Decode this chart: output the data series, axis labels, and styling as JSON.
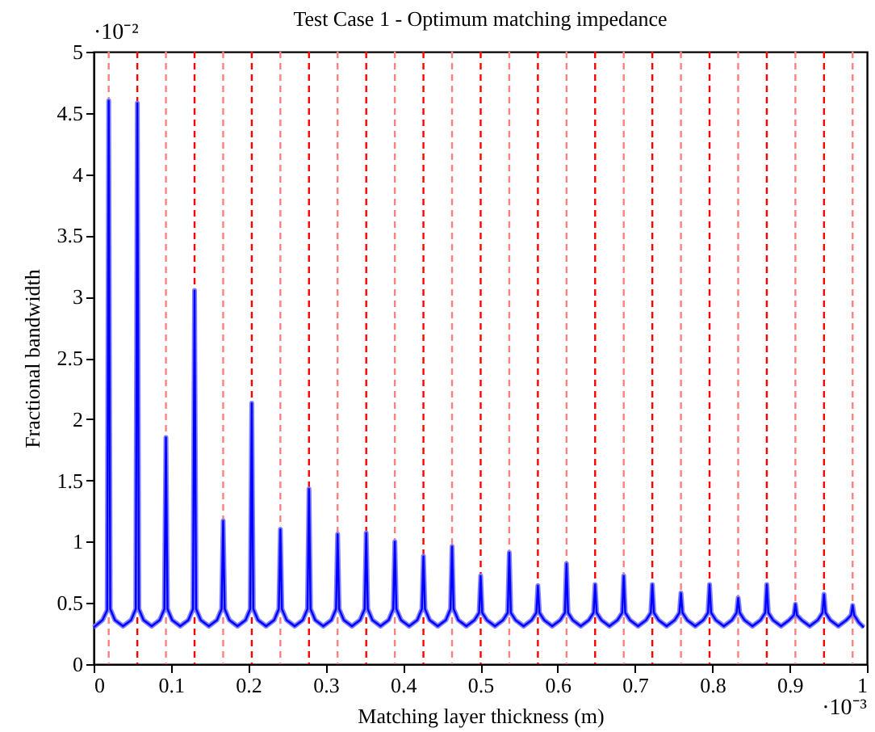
{
  "chart_data": {
    "type": "line",
    "title": "Test Case 1 - Optimum matching impedance",
    "xlabel": "Matching layer thickness (m)",
    "ylabel": "Fractional bandwidth",
    "annotations": [
      "·10⁻²",
      "·10⁻³"
    ],
    "xlim": [
      0,
      1
    ],
    "ylim": [
      0,
      5
    ],
    "xticks": [
      0,
      0.1,
      0.2,
      0.3,
      0.4,
      0.5,
      0.6,
      0.7,
      0.8,
      0.9,
      1
    ],
    "yticks": [
      0,
      0.5,
      1,
      1.5,
      2,
      2.5,
      3,
      3.5,
      4,
      4.5,
      5
    ],
    "x": [
      0,
      0.0115,
      0.0175,
      0.0195,
      0.0215,
      0.0275,
      0.038,
      0.0485,
      0.0545,
      0.0565,
      0.0585,
      0.0645,
      0.075,
      0.0855,
      0.0915,
      0.0935,
      0.0955,
      0.1015,
      0.112,
      0.1225,
      0.1285,
      0.1305,
      0.1325,
      0.1385,
      0.149,
      0.1595,
      0.1655,
      0.1675,
      0.1695,
      0.1755,
      0.186,
      0.1965,
      0.2025,
      0.2045,
      0.2065,
      0.2125,
      0.223,
      0.2335,
      0.2395,
      0.2415,
      0.2435,
      0.2495,
      0.26,
      0.2705,
      0.2765,
      0.2785,
      0.2805,
      0.2865,
      0.297,
      0.3075,
      0.3135,
      0.3155,
      0.3175,
      0.3235,
      0.334,
      0.3445,
      0.3505,
      0.3525,
      0.3545,
      0.3605,
      0.371,
      0.3815,
      0.3875,
      0.3895,
      0.3915,
      0.3975,
      0.408,
      0.4185,
      0.4245,
      0.4265,
      0.4285,
      0.4345,
      0.445,
      0.4555,
      0.4615,
      0.4635,
      0.4655,
      0.4715,
      0.482,
      0.4925,
      0.4985,
      0.5005,
      0.5025,
      0.5085,
      0.519,
      0.5295,
      0.5355,
      0.5375,
      0.5395,
      0.5455,
      0.556,
      0.5665,
      0.5725,
      0.5745,
      0.5765,
      0.5825,
      0.593,
      0.6035,
      0.6095,
      0.6115,
      0.6135,
      0.6195,
      0.63,
      0.6405,
      0.6465,
      0.6485,
      0.6505,
      0.6565,
      0.667,
      0.6775,
      0.6835,
      0.6855,
      0.6875,
      0.6935,
      0.704,
      0.7145,
      0.7205,
      0.7225,
      0.7245,
      0.7305,
      0.741,
      0.7515,
      0.7575,
      0.7595,
      0.7615,
      0.7675,
      0.778,
      0.7885,
      0.7945,
      0.7965,
      0.7985,
      0.8045,
      0.815,
      0.8255,
      0.8315,
      0.8335,
      0.8355,
      0.8415,
      0.852,
      0.8625,
      0.8685,
      0.8705,
      0.8725,
      0.8785,
      0.889,
      0.8995,
      0.9055,
      0.9075,
      0.9095,
      0.9155,
      0.926,
      0.9365,
      0.9425,
      0.9445,
      0.9465,
      0.9525,
      0.963,
      0.9735,
      0.9795,
      0.9815,
      0.9835,
      0.9895,
      0.996
    ],
    "series": [
      {
        "color": "#8080ff",
        "line_style": "solid",
        "values": [
          0.3,
          0.36,
          0.44,
          4.6,
          0.45,
          0.36,
          0.31,
          0.36,
          0.45,
          4.58,
          0.45,
          0.36,
          0.31,
          0.36,
          0.45,
          1.85,
          0.45,
          0.36,
          0.31,
          0.36,
          0.45,
          3.05,
          0.45,
          0.36,
          0.31,
          0.36,
          0.45,
          1.17,
          0.45,
          0.36,
          0.31,
          0.36,
          0.45,
          2.13,
          0.45,
          0.36,
          0.31,
          0.36,
          0.45,
          1.1,
          0.45,
          0.36,
          0.31,
          0.36,
          0.45,
          1.43,
          0.45,
          0.36,
          0.31,
          0.36,
          0.45,
          1.06,
          0.45,
          0.36,
          0.31,
          0.36,
          0.45,
          1.07,
          0.45,
          0.36,
          0.31,
          0.36,
          0.45,
          1.0,
          0.45,
          0.36,
          0.31,
          0.36,
          0.45,
          0.88,
          0.45,
          0.36,
          0.31,
          0.36,
          0.45,
          0.96,
          0.45,
          0.36,
          0.31,
          0.36,
          0.42,
          0.72,
          0.42,
          0.36,
          0.31,
          0.36,
          0.42,
          0.91,
          0.42,
          0.36,
          0.31,
          0.36,
          0.42,
          0.64,
          0.42,
          0.36,
          0.31,
          0.36,
          0.42,
          0.82,
          0.42,
          0.36,
          0.31,
          0.36,
          0.42,
          0.65,
          0.42,
          0.36,
          0.31,
          0.36,
          0.42,
          0.72,
          0.42,
          0.36,
          0.31,
          0.36,
          0.42,
          0.65,
          0.42,
          0.36,
          0.31,
          0.36,
          0.42,
          0.58,
          0.42,
          0.36,
          0.31,
          0.36,
          0.42,
          0.65,
          0.42,
          0.36,
          0.31,
          0.36,
          0.42,
          0.54,
          0.42,
          0.36,
          0.31,
          0.36,
          0.42,
          0.65,
          0.42,
          0.36,
          0.31,
          0.36,
          0.4,
          0.49,
          0.4,
          0.36,
          0.31,
          0.36,
          0.42,
          0.57,
          0.42,
          0.36,
          0.31,
          0.36,
          0.4,
          0.48,
          0.4,
          0.34,
          0.3
        ]
      },
      {
        "color": "#0000ff",
        "line_style": "solid",
        "values": [
          0.3,
          0.36,
          0.44,
          4.6,
          0.45,
          0.36,
          0.31,
          0.36,
          0.45,
          4.58,
          0.45,
          0.36,
          0.31,
          0.36,
          0.45,
          1.85,
          0.45,
          0.36,
          0.31,
          0.36,
          0.45,
          3.05,
          0.45,
          0.36,
          0.31,
          0.36,
          0.45,
          1.17,
          0.45,
          0.36,
          0.31,
          0.36,
          0.45,
          2.13,
          0.45,
          0.36,
          0.31,
          0.36,
          0.45,
          1.1,
          0.45,
          0.36,
          0.31,
          0.36,
          0.45,
          1.43,
          0.45,
          0.36,
          0.31,
          0.36,
          0.45,
          1.06,
          0.45,
          0.36,
          0.31,
          0.36,
          0.45,
          1.07,
          0.45,
          0.36,
          0.31,
          0.36,
          0.45,
          1.0,
          0.45,
          0.36,
          0.31,
          0.36,
          0.45,
          0.88,
          0.45,
          0.36,
          0.31,
          0.36,
          0.45,
          0.96,
          0.45,
          0.36,
          0.31,
          0.36,
          0.42,
          0.72,
          0.42,
          0.36,
          0.31,
          0.36,
          0.42,
          0.91,
          0.42,
          0.36,
          0.31,
          0.36,
          0.42,
          0.64,
          0.42,
          0.36,
          0.31,
          0.36,
          0.42,
          0.82,
          0.42,
          0.36,
          0.31,
          0.36,
          0.42,
          0.65,
          0.42,
          0.36,
          0.31,
          0.36,
          0.42,
          0.72,
          0.42,
          0.36,
          0.31,
          0.36,
          0.42,
          0.65,
          0.42,
          0.36,
          0.31,
          0.36,
          0.42,
          0.58,
          0.42,
          0.36,
          0.31,
          0.36,
          0.42,
          0.65,
          0.42,
          0.36,
          0.31,
          0.36,
          0.42,
          0.54,
          0.42,
          0.36,
          0.31,
          0.36,
          0.42,
          0.65,
          0.42,
          0.36,
          0.31,
          0.36,
          0.4,
          0.49,
          0.4,
          0.36,
          0.31,
          0.36,
          0.42,
          0.57,
          0.42,
          0.36,
          0.31,
          0.36,
          0.4,
          0.48,
          0.4,
          0.34,
          0.3
        ]
      }
    ],
    "ref_lines": [
      {
        "axis": "x",
        "value": 0.0195,
        "color": "#ff8080",
        "line_style": "dashed"
      },
      {
        "axis": "x",
        "value": 0.0565,
        "color": "#ff0000",
        "line_style": "dashed"
      },
      {
        "axis": "x",
        "value": 0.0935,
        "color": "#ff8080",
        "line_style": "dashed"
      },
      {
        "axis": "x",
        "value": 0.1305,
        "color": "#ff0000",
        "line_style": "dashed"
      },
      {
        "axis": "x",
        "value": 0.1675,
        "color": "#ff8080",
        "line_style": "dashed"
      },
      {
        "axis": "x",
        "value": 0.2045,
        "color": "#ff0000",
        "line_style": "dashed"
      },
      {
        "axis": "x",
        "value": 0.2415,
        "color": "#ff8080",
        "line_style": "dashed"
      },
      {
        "axis": "x",
        "value": 0.2785,
        "color": "#ff0000",
        "line_style": "dashed"
      },
      {
        "axis": "x",
        "value": 0.3155,
        "color": "#ff8080",
        "line_style": "dashed"
      },
      {
        "axis": "x",
        "value": 0.3525,
        "color": "#ff0000",
        "line_style": "dashed"
      },
      {
        "axis": "x",
        "value": 0.3895,
        "color": "#ff8080",
        "line_style": "dashed"
      },
      {
        "axis": "x",
        "value": 0.4265,
        "color": "#ff0000",
        "line_style": "dashed"
      },
      {
        "axis": "x",
        "value": 0.4635,
        "color": "#ff8080",
        "line_style": "dashed"
      },
      {
        "axis": "x",
        "value": 0.5005,
        "color": "#ff0000",
        "line_style": "dashed"
      },
      {
        "axis": "x",
        "value": 0.5375,
        "color": "#ff8080",
        "line_style": "dashed"
      },
      {
        "axis": "x",
        "value": 0.5745,
        "color": "#ff0000",
        "line_style": "dashed"
      },
      {
        "axis": "x",
        "value": 0.6115,
        "color": "#ff8080",
        "line_style": "dashed"
      },
      {
        "axis": "x",
        "value": 0.6485,
        "color": "#ff0000",
        "line_style": "dashed"
      },
      {
        "axis": "x",
        "value": 0.6855,
        "color": "#ff8080",
        "line_style": "dashed"
      },
      {
        "axis": "x",
        "value": 0.7225,
        "color": "#ff0000",
        "line_style": "dashed"
      },
      {
        "axis": "x",
        "value": 0.7595,
        "color": "#ff8080",
        "line_style": "dashed"
      },
      {
        "axis": "x",
        "value": 0.7965,
        "color": "#ff0000",
        "line_style": "dashed"
      },
      {
        "axis": "x",
        "value": 0.8335,
        "color": "#ff8080",
        "line_style": "dashed"
      },
      {
        "axis": "x",
        "value": 0.8705,
        "color": "#ff0000",
        "line_style": "dashed"
      },
      {
        "axis": "x",
        "value": 0.9075,
        "color": "#ff8080",
        "line_style": "dashed"
      },
      {
        "axis": "x",
        "value": 0.9445,
        "color": "#ff0000",
        "line_style": "dashed"
      },
      {
        "axis": "x",
        "value": 0.9815,
        "color": "#ff8080",
        "line_style": "dashed"
      }
    ]
  }
}
